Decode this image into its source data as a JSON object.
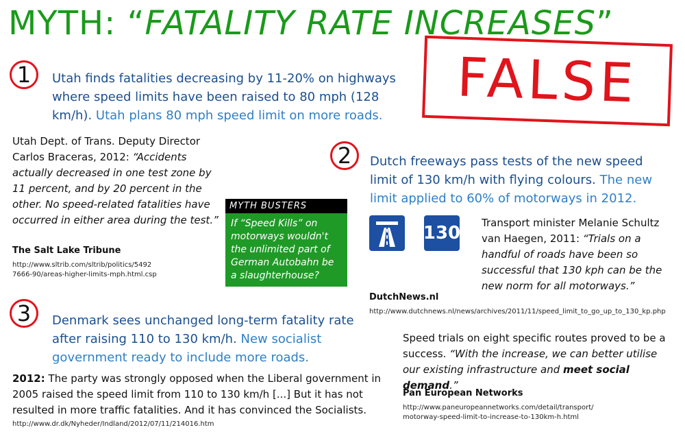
{
  "title": {
    "prefix": "MYTH: “",
    "italic": "FATALITY RATE INCREASES",
    "suffix": "”"
  },
  "stamp": "FALSE",
  "item1": {
    "number": "1",
    "headline_dark": "Utah finds fatalities decreasing by 11-20% on highways where speed limits have been raised to 80 mph (128 km/h).",
    "headline_light": "Utah plans 80 mph speed limit on more roads.",
    "quote_intro": "Utah Dept. of Trans. Deputy Director Carlos Braceras, 2012:",
    "quote": "“Accidents actually decreased in one test zone by 11 percent, and by 20 percent in the other. No speed-related fatalities have occurred in either area during the test.”",
    "source": "The Salt Lake Tribune",
    "url_line1": "http://www.sltrib.com/sltrib/politics/5492",
    "url_line2": "7666-90/areas-higher-limits-mph.html.csp"
  },
  "myth_busters": {
    "header": "MYTH BUSTERS",
    "text": "If “Speed Kills” on motorways wouldn't the unlimited part of German Autobahn be a slaughterhouse?"
  },
  "item2": {
    "number": "2",
    "headline_dark": "Dutch freeways pass tests of the new speed limit of 130 km/h with flying colours.",
    "headline_light": "The new limit applied to 60% of motorways in 2012.",
    "sign_motorway": "motorway-sign-icon",
    "sign_speed": "130",
    "quote_intro": "Transport minister Melanie Schultz van Haegen, 2011:",
    "quote": "“Trials on a handful of roads have been so successful that 130 kph can be the new norm for all motorways.”",
    "source": "DutchNews.nl",
    "url": "http://www.dutchnews.nl/news/archives/2011/11/speed_limit_to_go_up_to_130_kp.php"
  },
  "item3": {
    "number": "3",
    "headline_dark": "Denmark sees unchanged long-term fatality rate after raising 110 to 130 km/h.",
    "headline_light": "New socialist government ready to include more roads.",
    "body_bold": "2012:",
    "body": "The party was strongly opposed when the Liberal government in 2005 raised the speed limit from 110 to 130 km/h [...] But it has not resulted in more traffic fatalities. And it has convinced the Socialists.",
    "url": "http://www.dr.dk/Nyheder/Indland/2012/07/11/214016.htm"
  },
  "pan_european": {
    "text_plain": "Speed trials on eight specific routes proved to be a success.",
    "quote_part1": "“With the increase, we can better utilise our existing infrastructure and",
    "quote_bold": "meet social demand",
    "quote_end": ".”",
    "source": "Pan European Networks",
    "url_line1": "http://www.paneuropeannetworks.com/detail/transport/",
    "url_line2": "motorway-speed-limit-to-increase-to-130km-h.html"
  }
}
